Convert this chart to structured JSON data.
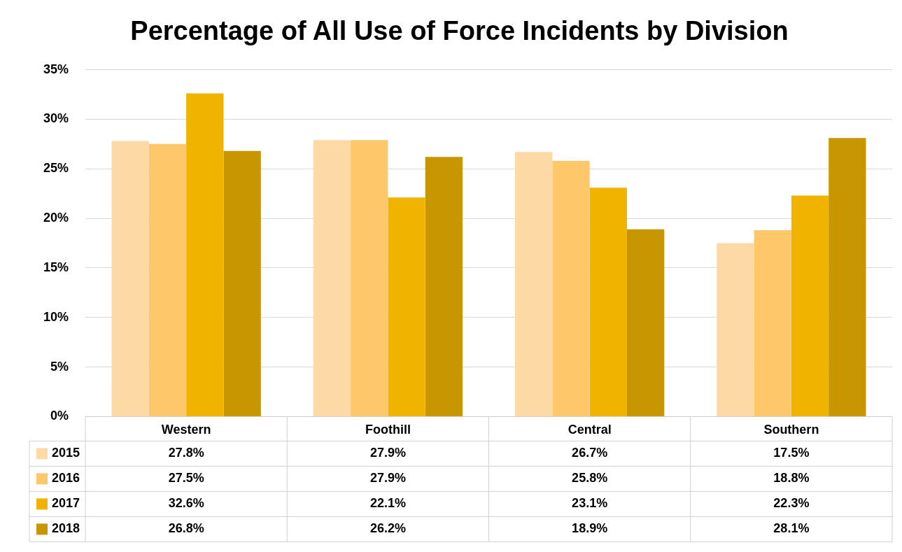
{
  "chart_data": {
    "type": "bar",
    "title": "Percentage of All Use of Force Incidents by Division",
    "categories": [
      "Western",
      "Foothill",
      "Central",
      "Southern"
    ],
    "series": [
      {
        "name": "2015",
        "color": "#fdd9a6",
        "values": [
          27.8,
          27.9,
          26.7,
          17.5
        ],
        "value_labels": [
          "27.8%",
          "27.9%",
          "26.7%",
          "17.5%"
        ]
      },
      {
        "name": "2016",
        "color": "#fec86a",
        "values": [
          27.5,
          27.9,
          25.8,
          18.8
        ],
        "value_labels": [
          "27.5%",
          "27.9%",
          "25.8%",
          "18.8%"
        ]
      },
      {
        "name": "2017",
        "color": "#f0b400",
        "values": [
          32.6,
          22.1,
          23.1,
          22.3
        ],
        "value_labels": [
          "32.6%",
          "22.1%",
          "23.1%",
          "22.3%"
        ]
      },
      {
        "name": "2018",
        "color": "#c89600",
        "values": [
          26.8,
          26.2,
          18.9,
          28.1
        ],
        "value_labels": [
          "26.8%",
          "26.2%",
          "18.9%",
          "28.1%"
        ]
      }
    ],
    "ylim": [
      0,
      35
    ],
    "yticks": [
      {
        "value": 0,
        "label": "0%"
      },
      {
        "value": 5,
        "label": "5%"
      },
      {
        "value": 10,
        "label": "10%"
      },
      {
        "value": 15,
        "label": "15%"
      },
      {
        "value": 20,
        "label": "20%"
      },
      {
        "value": 25,
        "label": "25%"
      },
      {
        "value": 30,
        "label": "30%"
      },
      {
        "value": 35,
        "label": "35%"
      }
    ],
    "grid": "y",
    "legend": "bottom"
  }
}
